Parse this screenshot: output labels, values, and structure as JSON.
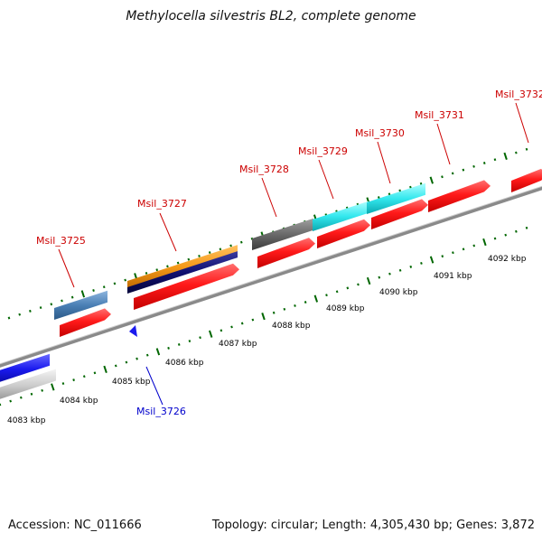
{
  "title": "Methylocella silvestris BL2, complete genome",
  "footer": {
    "accession": "Accession: NC_011666",
    "stats": "Topology: circular; Length: 4,305,430 bp; Genes: 3,872"
  },
  "colors": {
    "forward_gene": "#ff1a1a",
    "reverse_label": "#0000cc",
    "forward_label": "#cc0000",
    "backbone": "#888888",
    "tick": "#006600",
    "cds_blue": "#4a7fb5",
    "cds_orange": "#f59a1a",
    "cds_navy": "#101070",
    "cds_gray": "#6a6a6a",
    "cds_cyan": "#33e8ee",
    "cds_royal": "#1a1aee",
    "cds_silver": "#cccccc"
  },
  "kbp_ticks": [
    "4083 kbp",
    "4084 kbp",
    "4085 kbp",
    "4086 kbp",
    "4087 kbp",
    "4088 kbp",
    "4089 kbp",
    "4090 kbp",
    "4091 kbp",
    "4092 kbp"
  ],
  "genes": [
    {
      "label": "Msil_3725",
      "strand": "forward"
    },
    {
      "label": "Msil_3726",
      "strand": "reverse"
    },
    {
      "label": "Msil_3727",
      "strand": "forward"
    },
    {
      "label": "Msil_3728",
      "strand": "forward"
    },
    {
      "label": "Msil_3729",
      "strand": "forward"
    },
    {
      "label": "Msil_3730",
      "strand": "forward"
    },
    {
      "label": "Msil_3731",
      "strand": "forward"
    },
    {
      "label": "Msil_3732",
      "strand": "forward"
    }
  ]
}
